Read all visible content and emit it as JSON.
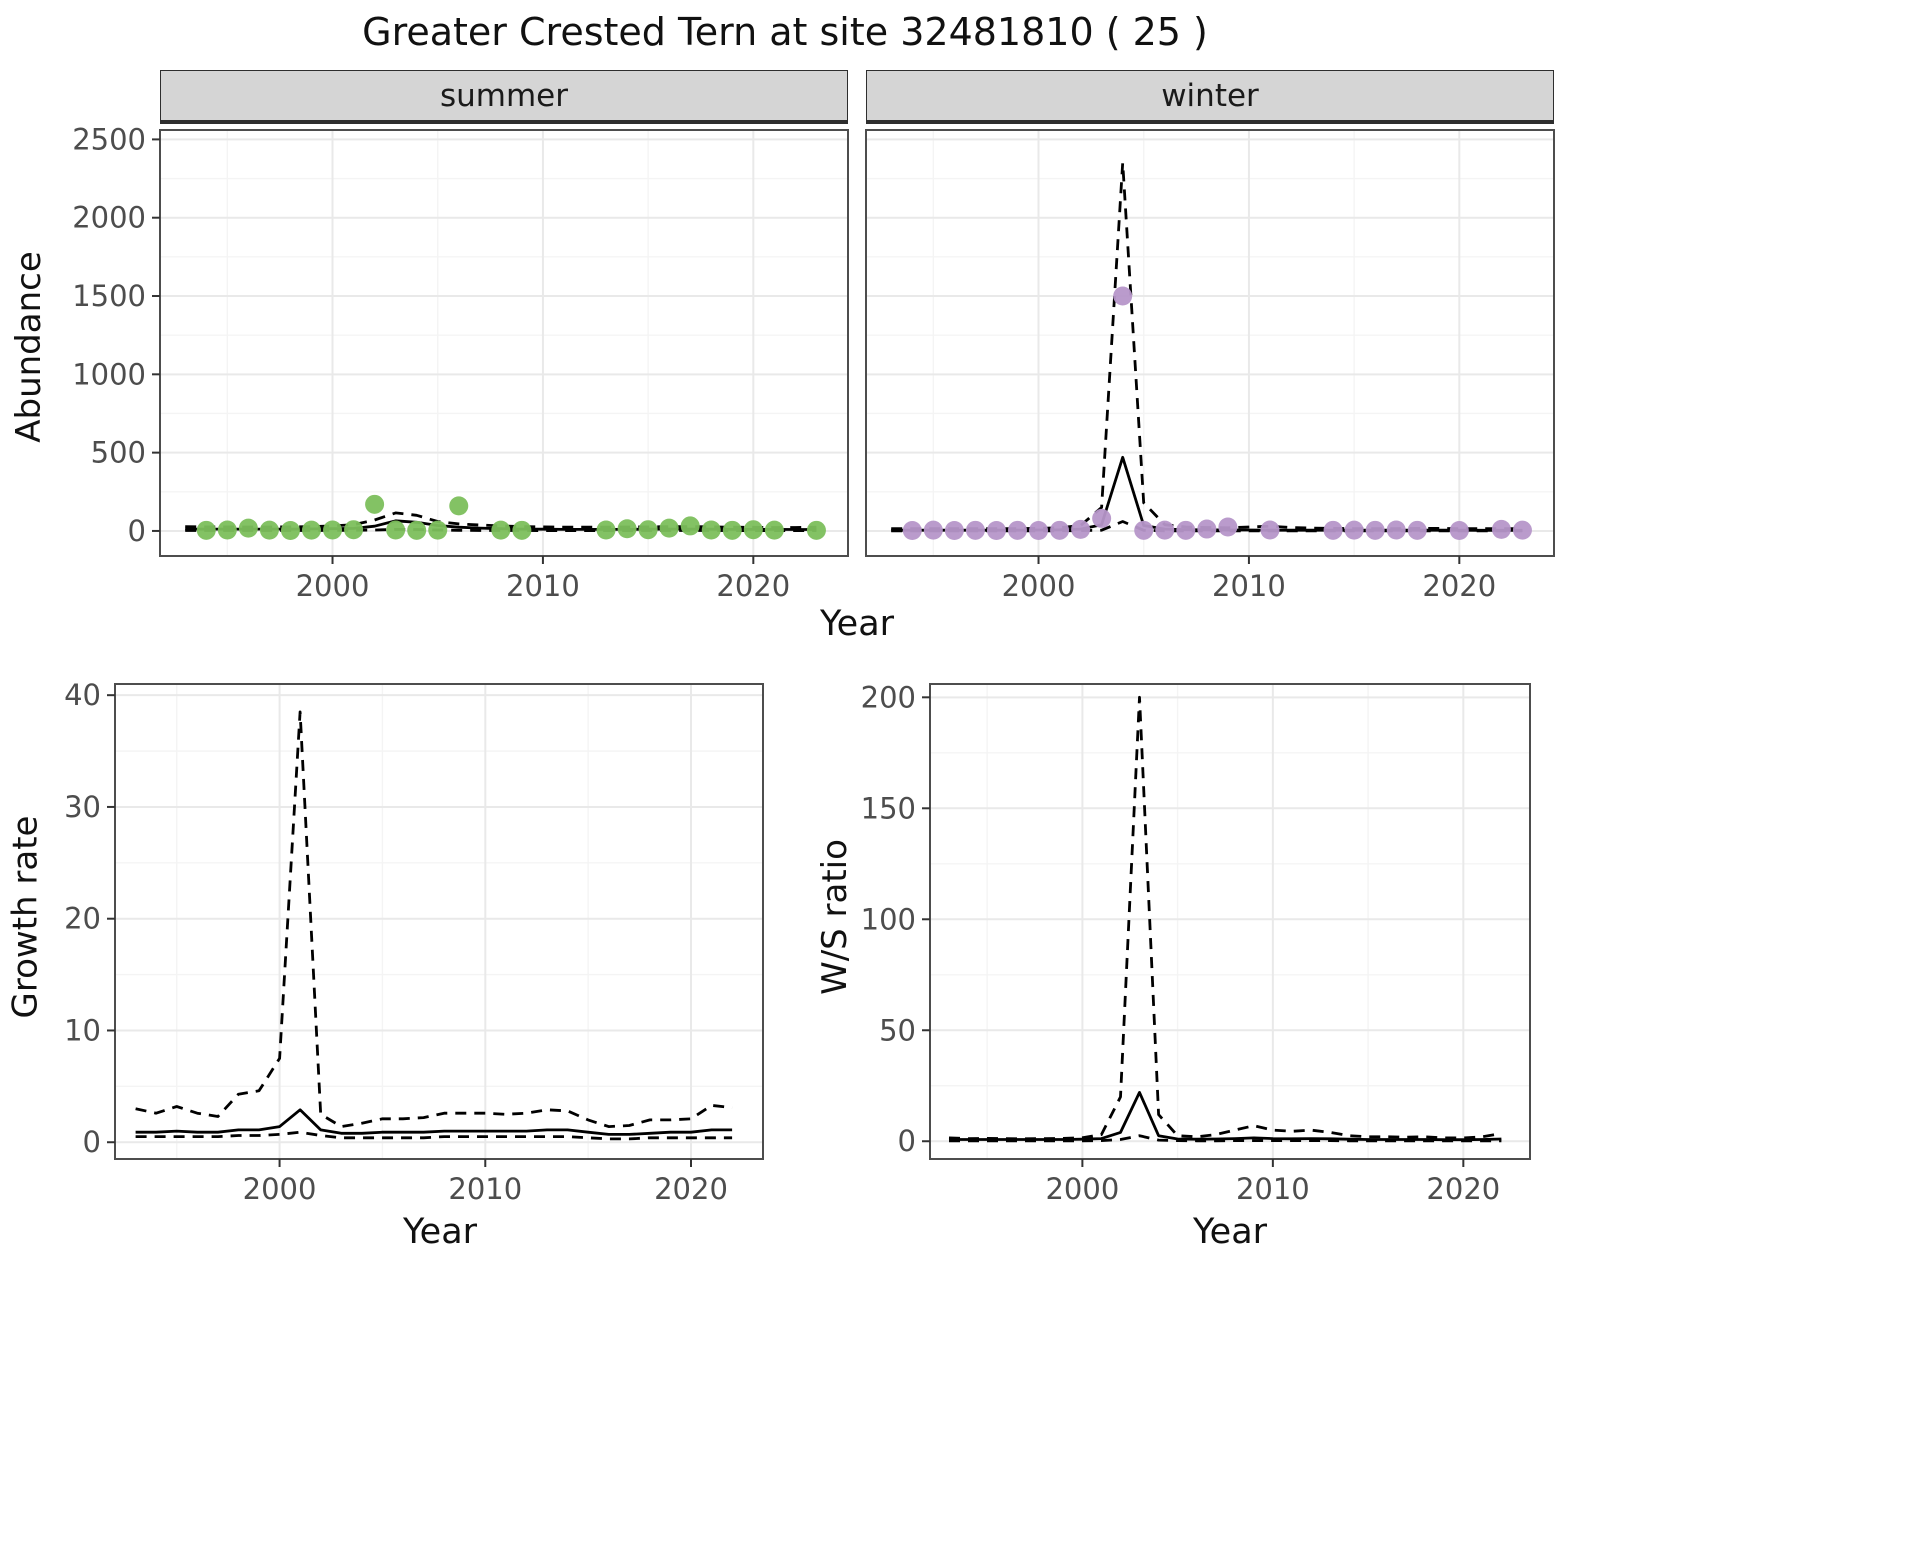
{
  "title": "Greater Crested Tern at site 32481810 ( 25 )",
  "chart_data": [
    {
      "id": "abundance-summer",
      "type": "line",
      "facet": "summer",
      "xlabel": "Year",
      "ylabel": "Abundance",
      "xlim": [
        1991.8,
        2024.5
      ],
      "ylim": [
        -160,
        2560
      ],
      "xticks": [
        2000,
        2010,
        2020
      ],
      "yticks": [
        0,
        500,
        1000,
        1500,
        2000,
        2500
      ],
      "grid": true,
      "legend": "none",
      "point_color": "#7cbf5c",
      "series": [
        {
          "name": "observed",
          "style": "points",
          "x": [
            1994,
            1995,
            1996,
            1997,
            1998,
            1999,
            2000,
            2001,
            2002,
            2003,
            2004,
            2005,
            2006,
            2008,
            2009,
            2013,
            2014,
            2015,
            2016,
            2017,
            2018,
            2019,
            2020,
            2021,
            2023
          ],
          "y": [
            4,
            6,
            18,
            5,
            3,
            5,
            6,
            8,
            170,
            6,
            4,
            5,
            160,
            5,
            4,
            6,
            14,
            8,
            18,
            32,
            6,
            4,
            8,
            5,
            4
          ]
        },
        {
          "name": "upper-ci",
          "style": "dashed-line",
          "x": [
            1993,
            1994,
            1995,
            1996,
            1997,
            1998,
            1999,
            2000,
            2001,
            2002,
            2003,
            2004,
            2005,
            2006,
            2007,
            2008,
            2009,
            2010,
            2011,
            2012,
            2013,
            2014,
            2015,
            2016,
            2017,
            2018,
            2019,
            2020,
            2021,
            2022,
            2023
          ],
          "y": [
            28,
            26,
            26,
            25,
            25,
            26,
            28,
            32,
            40,
            70,
            115,
            100,
            60,
            45,
            38,
            32,
            28,
            26,
            24,
            24,
            24,
            25,
            26,
            28,
            28,
            26,
            24,
            23,
            22,
            22,
            24
          ]
        },
        {
          "name": "lower-ci",
          "style": "dashed-line",
          "x": [
            1993,
            1994,
            1995,
            1996,
            1997,
            1998,
            1999,
            2000,
            2001,
            2002,
            2003,
            2004,
            2005,
            2006,
            2007,
            2008,
            2009,
            2010,
            2011,
            2012,
            2013,
            2014,
            2015,
            2016,
            2017,
            2018,
            2019,
            2020,
            2021,
            2022,
            2023
          ],
          "y": [
            3,
            3,
            3,
            3,
            3,
            3,
            3,
            4,
            4,
            6,
            10,
            9,
            6,
            4,
            3,
            3,
            3,
            2,
            2,
            2,
            2,
            2,
            3,
            3,
            3,
            3,
            2,
            2,
            2,
            2,
            2
          ]
        },
        {
          "name": "fit",
          "style": "solid-line",
          "x": [
            1993,
            1994,
            1995,
            1996,
            1997,
            1998,
            1999,
            2000,
            2001,
            2002,
            2003,
            2004,
            2005,
            2006,
            2007,
            2008,
            2009,
            2010,
            2011,
            2012,
            2013,
            2014,
            2015,
            2016,
            2017,
            2018,
            2019,
            2020,
            2021,
            2022,
            2023
          ],
          "y": [
            12,
            12,
            12,
            12,
            12,
            12,
            13,
            14,
            16,
            30,
            65,
            55,
            35,
            24,
            18,
            14,
            12,
            11,
            10,
            10,
            10,
            10,
            11,
            12,
            12,
            11,
            10,
            10,
            10,
            9,
            9
          ]
        }
      ]
    },
    {
      "id": "abundance-winter",
      "type": "line",
      "facet": "winter",
      "xlabel": "Year",
      "ylabel": "Abundance",
      "xlim": [
        1991.8,
        2024.5
      ],
      "ylim": [
        -160,
        2560
      ],
      "xticks": [
        2000,
        2010,
        2020
      ],
      "yticks": [
        0,
        500,
        1000,
        1500,
        2000,
        2500
      ],
      "grid": true,
      "legend": "none",
      "point_color": "#b696c9",
      "series": [
        {
          "name": "observed",
          "style": "points",
          "x": [
            1994,
            1995,
            1996,
            1997,
            1998,
            1999,
            2000,
            2001,
            2002,
            2003,
            2004,
            2005,
            2006,
            2007,
            2008,
            2009,
            2011,
            2014,
            2015,
            2016,
            2017,
            2018,
            2020,
            2022,
            2023
          ],
          "y": [
            3,
            5,
            3,
            4,
            3,
            4,
            3,
            4,
            10,
            80,
            1500,
            4,
            5,
            4,
            12,
            25,
            6,
            4,
            5,
            4,
            6,
            4,
            3,
            10,
            5
          ]
        },
        {
          "name": "upper-ci",
          "style": "dashed-line",
          "x": [
            1993,
            1994,
            1995,
            1996,
            1997,
            1998,
            1999,
            2000,
            2001,
            2002,
            2003,
            2004,
            2005,
            2006,
            2007,
            2008,
            2009,
            2010,
            2011,
            2012,
            2013,
            2014,
            2015,
            2016,
            2017,
            2018,
            2019,
            2020,
            2021,
            2022,
            2023
          ],
          "y": [
            15,
            14,
            14,
            14,
            14,
            14,
            15,
            16,
            20,
            35,
            150,
            2350,
            180,
            40,
            25,
            22,
            20,
            25,
            30,
            22,
            18,
            16,
            15,
            15,
            15,
            16,
            16,
            15,
            14,
            14,
            15
          ]
        },
        {
          "name": "lower-ci",
          "style": "dashed-line",
          "x": [
            1993,
            1994,
            1995,
            1996,
            1997,
            1998,
            1999,
            2000,
            2001,
            2002,
            2003,
            2004,
            2005,
            2006,
            2007,
            2008,
            2009,
            2010,
            2011,
            2012,
            2013,
            2014,
            2015,
            2016,
            2017,
            2018,
            2019,
            2020,
            2021,
            2022,
            2023
          ],
          "y": [
            1,
            1,
            1,
            1,
            1,
            1,
            1,
            1,
            1,
            2,
            5,
            60,
            4,
            1,
            1,
            1,
            1,
            1,
            1,
            1,
            1,
            1,
            1,
            1,
            1,
            1,
            1,
            1,
            1,
            1,
            1
          ]
        },
        {
          "name": "fit",
          "style": "solid-line",
          "x": [
            1993,
            1994,
            1995,
            1996,
            1997,
            1998,
            1999,
            2000,
            2001,
            2002,
            2003,
            2004,
            2005,
            2006,
            2007,
            2008,
            2009,
            2010,
            2011,
            2012,
            2013,
            2014,
            2015,
            2016,
            2017,
            2018,
            2019,
            2020,
            2021,
            2022,
            2023
          ],
          "y": [
            5,
            5,
            5,
            5,
            5,
            5,
            5,
            6,
            7,
            12,
            40,
            470,
            35,
            12,
            8,
            7,
            6,
            6,
            5,
            5,
            5,
            5,
            5,
            5,
            5,
            5,
            5,
            5,
            4,
            4,
            4
          ]
        }
      ]
    },
    {
      "id": "growth-rate",
      "type": "line",
      "facet": "",
      "xlabel": "Year",
      "ylabel": "Growth rate",
      "xlim": [
        1992,
        2023.5
      ],
      "ylim": [
        -1.5,
        41
      ],
      "xticks": [
        2000,
        2010,
        2020
      ],
      "yticks": [
        0,
        10,
        20,
        30,
        40
      ],
      "grid": true,
      "legend": "none",
      "point_color": "#000000",
      "series": [
        {
          "name": "upper-ci",
          "style": "dashed-line",
          "x": [
            1993,
            1994,
            1995,
            1996,
            1997,
            1998,
            1999,
            2000,
            2001,
            2002,
            2003,
            2004,
            2005,
            2006,
            2007,
            2008,
            2009,
            2010,
            2011,
            2012,
            2013,
            2014,
            2015,
            2016,
            2017,
            2018,
            2019,
            2020,
            2021,
            2022
          ],
          "y": [
            3.0,
            2.6,
            3.2,
            2.6,
            2.3,
            4.3,
            4.6,
            7.5,
            38.5,
            2.5,
            1.4,
            1.7,
            2.1,
            2.1,
            2.2,
            2.6,
            2.6,
            2.6,
            2.5,
            2.6,
            2.9,
            2.8,
            2.0,
            1.4,
            1.5,
            2.0,
            2.0,
            2.1,
            3.3,
            3.1
          ]
        },
        {
          "name": "lower-ci",
          "style": "dashed-line",
          "x": [
            1993,
            1994,
            1995,
            1996,
            1997,
            1998,
            1999,
            2000,
            2001,
            2002,
            2003,
            2004,
            2005,
            2006,
            2007,
            2008,
            2009,
            2010,
            2011,
            2012,
            2013,
            2014,
            2015,
            2016,
            2017,
            2018,
            2019,
            2020,
            2021,
            2022
          ],
          "y": [
            0.5,
            0.5,
            0.5,
            0.5,
            0.5,
            0.6,
            0.6,
            0.7,
            0.9,
            0.6,
            0.4,
            0.4,
            0.4,
            0.4,
            0.4,
            0.5,
            0.5,
            0.5,
            0.5,
            0.5,
            0.5,
            0.5,
            0.4,
            0.3,
            0.3,
            0.4,
            0.4,
            0.4,
            0.4,
            0.4
          ]
        },
        {
          "name": "fit",
          "style": "solid-line",
          "x": [
            1993,
            1994,
            1995,
            1996,
            1997,
            1998,
            1999,
            2000,
            2001,
            2002,
            2003,
            2004,
            2005,
            2006,
            2007,
            2008,
            2009,
            2010,
            2011,
            2012,
            2013,
            2014,
            2015,
            2016,
            2017,
            2018,
            2019,
            2020,
            2021,
            2022
          ],
          "y": [
            0.9,
            0.9,
            1.0,
            0.9,
            0.9,
            1.1,
            1.1,
            1.4,
            2.9,
            1.1,
            0.8,
            0.8,
            0.9,
            0.9,
            0.9,
            1.0,
            1.0,
            1.0,
            1.0,
            1.0,
            1.1,
            1.1,
            0.9,
            0.7,
            0.7,
            0.8,
            0.9,
            0.9,
            1.1,
            1.1
          ]
        }
      ]
    },
    {
      "id": "ws-ratio",
      "type": "line",
      "facet": "",
      "xlabel": "Year",
      "ylabel": "W/S ratio",
      "xlim": [
        1992,
        2023.5
      ],
      "ylim": [
        -8,
        206
      ],
      "xticks": [
        2000,
        2010,
        2020
      ],
      "yticks": [
        0,
        50,
        100,
        150,
        200
      ],
      "grid": true,
      "legend": "none",
      "point_color": "#000000",
      "series": [
        {
          "name": "upper-ci",
          "style": "dashed-line",
          "x": [
            1993,
            1994,
            1995,
            1996,
            1997,
            1998,
            1999,
            2000,
            2001,
            2002,
            2003,
            2004,
            2005,
            2006,
            2007,
            2008,
            2009,
            2010,
            2011,
            2012,
            2013,
            2014,
            2015,
            2016,
            2017,
            2018,
            2019,
            2020,
            2021,
            2022
          ],
          "y": [
            1.5,
            1.2,
            1.3,
            1.2,
            1.1,
            1.2,
            1.3,
            1.6,
            3.0,
            20,
            200,
            12,
            2.5,
            2.0,
            3.0,
            5.0,
            7.0,
            5.0,
            4.5,
            5.0,
            4.0,
            2.5,
            2.0,
            2.0,
            1.8,
            2.0,
            1.5,
            1.5,
            2.0,
            3.5
          ]
        },
        {
          "name": "lower-ci",
          "style": "dashed-line",
          "x": [
            1993,
            1994,
            1995,
            1996,
            1997,
            1998,
            1999,
            2000,
            2001,
            2002,
            2003,
            2004,
            2005,
            2006,
            2007,
            2008,
            2009,
            2010,
            2011,
            2012,
            2013,
            2014,
            2015,
            2016,
            2017,
            2018,
            2019,
            2020,
            2021,
            2022
          ],
          "y": [
            0.2,
            0.2,
            0.2,
            0.2,
            0.2,
            0.2,
            0.2,
            0.2,
            0.3,
            0.8,
            2.5,
            0.5,
            0.3,
            0.2,
            0.2,
            0.3,
            0.3,
            0.3,
            0.3,
            0.3,
            0.3,
            0.2,
            0.2,
            0.2,
            0.2,
            0.2,
            0.2,
            0.2,
            0.2,
            0.2
          ]
        },
        {
          "name": "fit",
          "style": "solid-line",
          "x": [
            1993,
            1994,
            1995,
            1996,
            1997,
            1998,
            1999,
            2000,
            2001,
            2002,
            2003,
            2004,
            2005,
            2006,
            2007,
            2008,
            2009,
            2010,
            2011,
            2012,
            2013,
            2014,
            2015,
            2016,
            2017,
            2018,
            2019,
            2020,
            2021,
            2022
          ],
          "y": [
            0.8,
            0.8,
            0.8,
            0.8,
            0.8,
            0.8,
            0.8,
            0.9,
            1.2,
            4.0,
            22,
            2.5,
            1.0,
            0.9,
            1.0,
            1.2,
            1.5,
            1.2,
            1.1,
            1.2,
            1.1,
            0.9,
            0.8,
            0.8,
            0.8,
            0.8,
            0.7,
            0.7,
            0.8,
            1.0
          ]
        }
      ]
    }
  ]
}
